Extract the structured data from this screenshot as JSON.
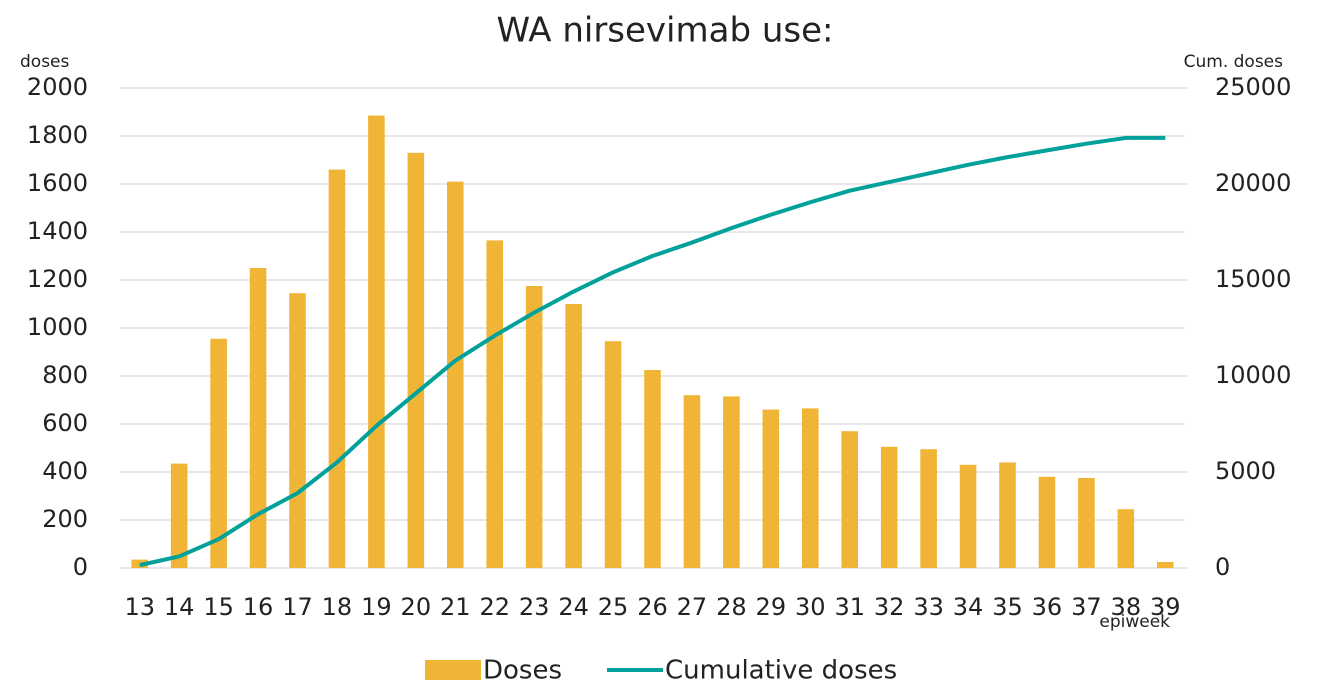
{
  "chart_data": {
    "type": "bar-line",
    "title": "WA nirsevimab use:",
    "y_label": "doses",
    "y2_label": "Cum. doses",
    "x_label": "epiweek",
    "categories": [
      "13",
      "14",
      "15",
      "16",
      "17",
      "18",
      "19",
      "20",
      "21",
      "22",
      "23",
      "24",
      "25",
      "26",
      "27",
      "28",
      "29",
      "30",
      "31",
      "32",
      "33",
      "34",
      "35",
      "36",
      "37",
      "38",
      "39"
    ],
    "series": [
      {
        "name": "Doses",
        "type": "bar",
        "color": "#f0b537",
        "values": [
          35,
          435,
          955,
          1250,
          1145,
          1660,
          1885,
          1730,
          1610,
          1365,
          1175,
          1100,
          945,
          825,
          720,
          715,
          660,
          665,
          570,
          505,
          495,
          430,
          440,
          380,
          375,
          245,
          25
        ]
      },
      {
        "name": "Cumulative doses",
        "type": "line",
        "color": "#00a19a",
        "axis": "y2",
        "values": [
          150,
          600,
          1500,
          2800,
          3900,
          5500,
          7400,
          9100,
          10800,
          12100,
          13300,
          14400,
          15400,
          16250,
          16950,
          17700,
          18400,
          19050,
          19650,
          20100,
          20550,
          21000,
          21400,
          21750,
          22100,
          22400,
          22400
        ]
      }
    ],
    "ylim": [
      0,
      2000
    ],
    "yticks": [
      0,
      200,
      400,
      600,
      800,
      1000,
      1200,
      1400,
      1600,
      1800,
      2000
    ],
    "y2lim": [
      0,
      25000
    ],
    "y2ticks": [
      0,
      5000,
      10000,
      15000,
      20000,
      25000
    ],
    "grid": true,
    "legend": "bottom"
  }
}
